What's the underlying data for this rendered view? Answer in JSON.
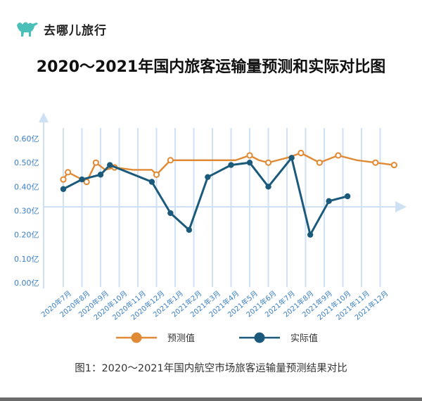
{
  "brand": {
    "name": "去哪儿旅行",
    "icon": "camel-logo-icon",
    "color": "#4ac0b8"
  },
  "title": "2020～2021年国内旅客运输量预测和实际对比图",
  "caption": "图1：2020～2021年国内航空市场旅客运输量预测结果对比",
  "colors": {
    "forecast": "#e08a35",
    "actual": "#1b5a7a",
    "grid": "#cfe2f5",
    "axis_text": "#3a7fc3",
    "arrow": "#cde0f4"
  },
  "chart_data": {
    "type": "line",
    "title": "2020～2021年国内旅客运输量预测和实际对比图",
    "xlabel": "",
    "ylabel": "",
    "ylim": [
      0,
      0.6
    ],
    "yticks": [
      "0.00亿",
      "0.10亿",
      "0.20亿",
      "0.30亿",
      "0.40亿",
      "0.50亿",
      "0.60亿"
    ],
    "categories": [
      "2020年7月",
      "2020年8月",
      "2020年9月",
      "2020年10月",
      "2020年11月",
      "2020年12月",
      "2021年1月",
      "2021年2月",
      "2021年3月",
      "2021年4月",
      "2021年5月",
      "2021年6月",
      "2021年7月",
      "2021年8月",
      "2021年9月",
      "2021年10月",
      "2021年11月",
      "2021年12月"
    ],
    "legend_position": "bottom",
    "series": [
      {
        "name": "预测值",
        "style": "hollow",
        "points": [
          {
            "x": 0.0,
            "y": 0.43
          },
          {
            "x": 0.25,
            "y": 0.46
          },
          {
            "x": 0.75,
            "y": 0.44
          },
          {
            "x": 1.25,
            "y": 0.42
          },
          {
            "x": 1.75,
            "y": 0.5
          },
          {
            "x": 2.25,
            "y": 0.47
          },
          {
            "x": 2.75,
            "y": 0.48
          },
          {
            "x": 3.75,
            "y": 0.47
          },
          {
            "x": 4.75,
            "y": 0.47
          },
          {
            "x": 5.0,
            "y": 0.45
          },
          {
            "x": 5.75,
            "y": 0.51
          },
          {
            "x": 6.25,
            "y": 0.51
          },
          {
            "x": 7.25,
            "y": 0.51
          },
          {
            "x": 8.25,
            "y": 0.51
          },
          {
            "x": 9.25,
            "y": 0.51
          },
          {
            "x": 10.0,
            "y": 0.53
          },
          {
            "x": 10.5,
            "y": 0.51
          },
          {
            "x": 11.0,
            "y": 0.5
          },
          {
            "x": 11.5,
            "y": 0.51
          },
          {
            "x": 12.0,
            "y": 0.52
          },
          {
            "x": 12.75,
            "y": 0.54
          },
          {
            "x": 13.75,
            "y": 0.5
          },
          {
            "x": 14.75,
            "y": 0.53
          },
          {
            "x": 15.75,
            "y": 0.51
          },
          {
            "x": 16.75,
            "y": 0.5
          },
          {
            "x": 17.75,
            "y": 0.49
          }
        ],
        "marker_indices": [
          0,
          1,
          3,
          4,
          6,
          9,
          10,
          15,
          17,
          20,
          21,
          22,
          24,
          25
        ]
      },
      {
        "name": "实际值",
        "style": "filled",
        "points": [
          {
            "x": 0.0,
            "y": 0.39
          },
          {
            "x": 1.0,
            "y": 0.43
          },
          {
            "x": 2.0,
            "y": 0.45
          },
          {
            "x": 2.5,
            "y": 0.49
          },
          {
            "x": 4.75,
            "y": 0.42
          },
          {
            "x": 5.75,
            "y": 0.29
          },
          {
            "x": 6.75,
            "y": 0.22
          },
          {
            "x": 7.75,
            "y": 0.44
          },
          {
            "x": 9.0,
            "y": 0.49
          },
          {
            "x": 10.0,
            "y": 0.5
          },
          {
            "x": 11.0,
            "y": 0.4
          },
          {
            "x": 12.25,
            "y": 0.52
          },
          {
            "x": 13.25,
            "y": 0.2
          },
          {
            "x": 14.25,
            "y": 0.34
          },
          {
            "x": 15.25,
            "y": 0.36
          }
        ],
        "marker_indices": [
          0,
          1,
          2,
          3,
          4,
          5,
          6,
          7,
          8,
          9,
          10,
          11,
          12,
          13,
          14
        ]
      }
    ]
  }
}
